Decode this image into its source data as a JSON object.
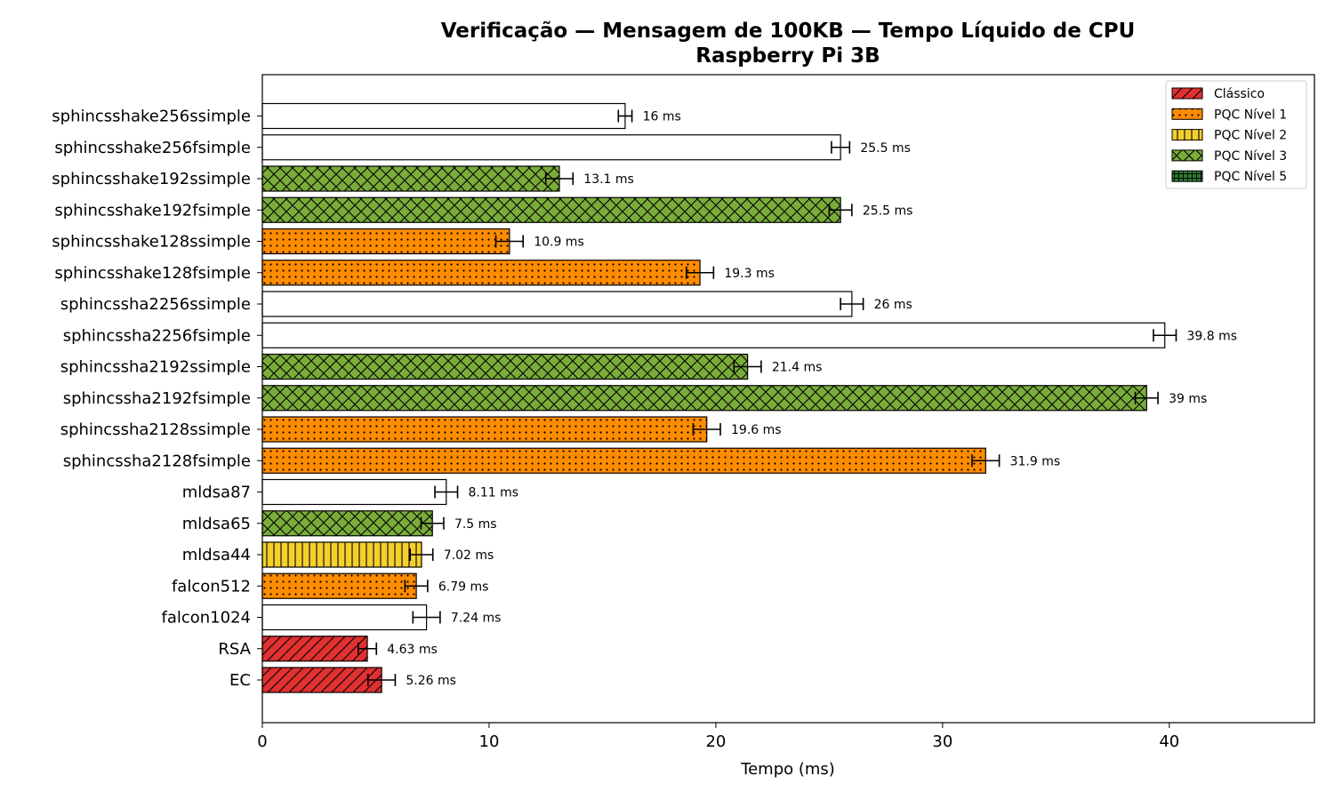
{
  "chart_data": {
    "type": "bar",
    "orientation": "horizontal",
    "title": "Verificação — Mensagem de 100KB — Tempo Líquido de CPU",
    "subtitle": "Raspberry Pi 3B",
    "xlabel": "Tempo (ms)",
    "xlim": [
      0,
      46.4
    ],
    "xticks": [
      0,
      10,
      20,
      30,
      40
    ],
    "grid": false,
    "legend_position": "top-right",
    "unit_suffix": " ms",
    "categories": [
      "sphincsshake256ssimple",
      "sphincsshake256fsimple",
      "sphincsshake192ssimple",
      "sphincsshake192fsimple",
      "sphincsshake128ssimple",
      "sphincsshake128fsimple",
      "sphincssha2256ssimple",
      "sphincssha2256fsimple",
      "sphincssha2192ssimple",
      "sphincssha2192fsimple",
      "sphincssha2128ssimple",
      "sphincssha2128fsimple",
      "mldsa87",
      "mldsa65",
      "mldsa44",
      "falcon512",
      "falcon1024",
      "RSA",
      "EC"
    ],
    "values": [
      16,
      25.5,
      13.1,
      25.5,
      10.9,
      19.3,
      26,
      39.8,
      21.4,
      39,
      19.6,
      31.9,
      8.11,
      7.5,
      7.02,
      6.79,
      7.24,
      4.63,
      5.26
    ],
    "value_labels": [
      "16 ms",
      "25.5 ms",
      "13.1 ms",
      "25.5 ms",
      "10.9 ms",
      "19.3 ms",
      "26 ms",
      "39.8 ms",
      "21.4 ms",
      "39 ms",
      "19.6 ms",
      "31.9 ms",
      "8.11 ms",
      "7.5 ms",
      "7.02 ms",
      "6.79 ms",
      "7.24 ms",
      "4.63 ms",
      "5.26 ms"
    ],
    "errors": [
      0.3,
      0.4,
      0.6,
      0.5,
      0.6,
      0.6,
      0.5,
      0.5,
      0.6,
      0.5,
      0.6,
      0.6,
      0.5,
      0.5,
      0.5,
      0.5,
      0.6,
      0.4,
      0.6
    ],
    "groups": [
      5,
      5,
      3,
      3,
      1,
      1,
      5,
      5,
      3,
      3,
      1,
      1,
      5,
      3,
      2,
      1,
      5,
      0,
      0
    ],
    "legend": [
      {
        "label": "Clássico",
        "color": "#e03030",
        "pattern": "diag"
      },
      {
        "label": "PQC Nível 1",
        "color": "#ff8c00",
        "pattern": "dots"
      },
      {
        "label": "PQC Nível 2",
        "color": "#f5cf2c",
        "pattern": "vlines"
      },
      {
        "label": "PQC Nível 3",
        "color": "#7aac3a",
        "pattern": "cross"
      },
      {
        "label": "PQC Nível 5",
        "color": "#2e7d32",
        "pattern": "grid"
      }
    ]
  }
}
